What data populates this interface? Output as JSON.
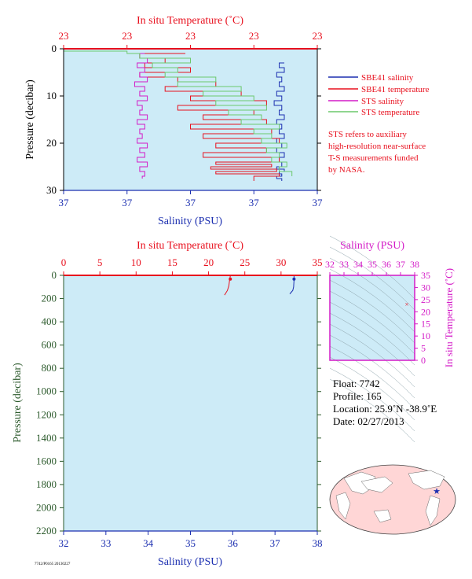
{
  "colors": {
    "plot_bg": "#cdebf7",
    "temperature": "#e8101e",
    "salinity": "#1c2fb0",
    "sts_salinity": "#d41bc7",
    "sts_temperature": "#6cc86c",
    "pressure_axis": "#2c5a2c",
    "ts_axis": "#d41bc7"
  },
  "chart_data": [
    {
      "id": "upper-profile",
      "type": "line",
      "top_title": "In situ Temperature (˚C)",
      "bottom_title": "Salinity (PSU)",
      "ylabel": "Pressure (decibar)",
      "top_ticks": [
        "23",
        "23",
        "23",
        "23",
        "23"
      ],
      "bottom_ticks": [
        "37",
        "37",
        "37",
        "37",
        "37"
      ],
      "y_ticks": [
        "0",
        "10",
        "20",
        "30"
      ],
      "ylim": [
        0,
        30
      ],
      "x_scale_note_ticks": [
        0,
        0.25,
        0.5,
        0.75,
        1
      ],
      "legend": [
        {
          "label": "SBE41 salinity",
          "color": "#1c2fb0"
        },
        {
          "label": "SBE41 temperature",
          "color": "#e8101e"
        },
        {
          "label": "STS salinity",
          "color": "#d41bc7"
        },
        {
          "label": "STS temperature",
          "color": "#6cc86c"
        }
      ],
      "note": [
        "STS refers to auxiliary",
        "high-resolution near-surface",
        "T-S measurements funded",
        "by NASA."
      ],
      "series": [
        {
          "name": "SBE41 salinity",
          "color": "#1c2fb0",
          "x_frac": [
            0.87,
            0.85,
            0.87,
            0.84,
            0.86,
            0.85,
            0.87,
            0.84,
            0.86,
            0.83,
            0.86,
            0.85,
            0.87,
            0.84,
            0.86,
            0.85,
            0.87,
            0.84,
            0.86,
            0.84,
            0.87,
            0.85,
            0.86,
            0.84,
            0.87,
            0.85,
            0.86,
            0.84,
            0.86
          ],
          "p": [
            3,
            4,
            5,
            6,
            7,
            8,
            9,
            10,
            11,
            12,
            13,
            14,
            15,
            16,
            17,
            18,
            19,
            20,
            21,
            22,
            23,
            24,
            25,
            25.5,
            26,
            26.5,
            27,
            27.5,
            28
          ]
        },
        {
          "name": "SBE41 temperature",
          "color": "#e8101e",
          "x_frac": [
            0.48,
            0.3,
            0.4,
            0.32,
            0.5,
            0.3,
            0.45,
            0.6,
            0.4,
            0.7,
            0.5,
            0.8,
            0.45,
            0.75,
            0.55,
            0.8,
            0.5,
            0.82,
            0.55,
            0.85,
            0.6,
            0.8,
            0.55,
            0.85,
            0.6,
            0.82,
            0.58,
            0.84,
            0.6,
            0.85,
            0.75
          ],
          "p": [
            1,
            2,
            3,
            4,
            5,
            6,
            7,
            8,
            9,
            10,
            11,
            12,
            13,
            14,
            15,
            16,
            17,
            18,
            19,
            20,
            21,
            22,
            23,
            24,
            24.5,
            25,
            25.5,
            26,
            26.5,
            27,
            28
          ]
        },
        {
          "name": "STS salinity",
          "color": "#d41bc7",
          "x_frac": [
            0.32,
            0.3,
            0.33,
            0.29,
            0.32,
            0.3,
            0.33,
            0.28,
            0.32,
            0.3,
            0.33,
            0.29,
            0.31,
            0.3,
            0.33,
            0.29,
            0.32,
            0.3,
            0.31,
            0.29,
            0.33,
            0.3,
            0.32,
            0.29,
            0.33,
            0.3,
            0.32,
            0.31
          ],
          "p": [
            1,
            2,
            3,
            4,
            5,
            6,
            7,
            8,
            9,
            10,
            11,
            12,
            13,
            14,
            15,
            16,
            17,
            18,
            19,
            20,
            21,
            22,
            23,
            24,
            25,
            26,
            27,
            27.5
          ]
        },
        {
          "name": "STS temperature",
          "color": "#6cc86c",
          "x_frac": [
            0.0,
            0.25,
            0.3,
            0.5,
            0.35,
            0.45,
            0.4,
            0.6,
            0.45,
            0.7,
            0.55,
            0.75,
            0.6,
            0.8,
            0.65,
            0.78,
            0.7,
            0.85,
            0.75,
            0.82,
            0.78,
            0.88,
            0.8,
            0.85,
            0.82,
            0.88,
            0.85,
            0.9
          ],
          "p": [
            0.5,
            1,
            2,
            3,
            4,
            5,
            6,
            7,
            8,
            9,
            10,
            11,
            12,
            13,
            14,
            15,
            16,
            17,
            18,
            19,
            20,
            21,
            22,
            23,
            24,
            25,
            26,
            27
          ]
        }
      ]
    },
    {
      "id": "lower-profile",
      "type": "line",
      "top_title": "In situ Temperature (˚C)",
      "bottom_title": "Salinity (PSU)",
      "ylabel": "Pressure (decibar)",
      "temperature_ticks": [
        "0",
        "5",
        "10",
        "15",
        "20",
        "25",
        "30",
        "35"
      ],
      "salinity_ticks": [
        "32",
        "33",
        "34",
        "35",
        "36",
        "37",
        "38"
      ],
      "pressure_ticks": [
        "0",
        "200",
        "400",
        "600",
        "800",
        "1000",
        "1200",
        "1400",
        "1600",
        "1800",
        "2000",
        "2200"
      ],
      "xlim_temperature": [
        0,
        35
      ],
      "xlim_salinity": [
        32,
        38
      ],
      "ylim": [
        0,
        2200
      ],
      "series": [
        {
          "name": "temperature",
          "color": "#e8101e",
          "x": [
            23.0,
            22.9,
            22.8,
            22.6,
            22.2
          ],
          "y": [
            5,
            40,
            90,
            130,
            170
          ]
        },
        {
          "name": "salinity",
          "color": "#1c2fb0",
          "x": [
            37.45,
            37.45,
            37.44,
            37.42,
            37.35
          ],
          "y": [
            5,
            40,
            100,
            130,
            160
          ]
        }
      ]
    },
    {
      "id": "ts-diagram",
      "type": "scatter",
      "top_title": "Salinity (PSU)",
      "ylabel": "In situ Temperature (˚C)",
      "xlim": [
        32,
        38
      ],
      "ylim": [
        0,
        35
      ],
      "x_ticks": [
        "32",
        "33",
        "34",
        "35",
        "36",
        "37",
        "38"
      ],
      "y_ticks": [
        "0",
        "5",
        "10",
        "15",
        "20",
        "25",
        "30",
        "35"
      ],
      "points": [
        {
          "x": 37.45,
          "y": 23.0
        }
      ]
    }
  ],
  "float_info": {
    "float": "Float:  7742",
    "profile": "Profile:  165",
    "location": "Location:  25.9˚N  -38.9˚E",
    "date": "Date:  02/27/2013"
  },
  "map": {
    "marker_lon": -38.9,
    "marker_lat": 25.9
  },
  "footer_code": "7742/P0165 20130227"
}
